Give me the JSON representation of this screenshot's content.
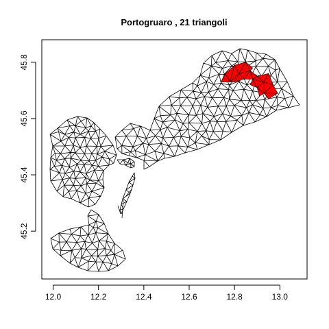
{
  "chart_data": {
    "type": "mesh",
    "title": "Portogruaro ,  21  triangoli",
    "xlabel": "",
    "ylabel": "",
    "xlim": [
      11.95,
      13.12
    ],
    "ylim": [
      45.03,
      45.88
    ],
    "x_ticks": [
      12.0,
      12.2,
      12.4,
      12.6,
      12.8,
      13.0
    ],
    "x_tick_labels": [
      "12.0",
      "12.2",
      "12.4",
      "12.6",
      "12.8",
      "13.0"
    ],
    "y_ticks": [
      45.2,
      45.4,
      45.6,
      45.8
    ],
    "y_tick_labels": [
      "45.2",
      "45.4",
      "45.6",
      "45.8"
    ],
    "highlight_color": "#ff0000",
    "mesh_color": "#000000",
    "highlighted_triangle_count": 21,
    "highlighted_triangles": [
      [
        [
          12.76,
          45.76
        ],
        [
          12.8,
          45.79
        ],
        [
          12.78,
          45.73
        ]
      ],
      [
        [
          12.8,
          45.79
        ],
        [
          12.82,
          45.76
        ],
        [
          12.78,
          45.73
        ]
      ],
      [
        [
          12.8,
          45.79
        ],
        [
          12.85,
          45.8
        ],
        [
          12.82,
          45.76
        ]
      ],
      [
        [
          12.85,
          45.8
        ],
        [
          12.87,
          45.77
        ],
        [
          12.82,
          45.76
        ]
      ],
      [
        [
          12.82,
          45.76
        ],
        [
          12.87,
          45.77
        ],
        [
          12.84,
          45.74
        ]
      ],
      [
        [
          12.82,
          45.76
        ],
        [
          12.84,
          45.74
        ],
        [
          12.8,
          45.73
        ]
      ],
      [
        [
          12.78,
          45.73
        ],
        [
          12.82,
          45.76
        ],
        [
          12.8,
          45.73
        ]
      ],
      [
        [
          12.76,
          45.76
        ],
        [
          12.78,
          45.73
        ],
        [
          12.74,
          45.73
        ]
      ],
      [
        [
          12.85,
          45.8
        ],
        [
          12.88,
          45.78
        ],
        [
          12.87,
          45.77
        ]
      ],
      [
        [
          12.87,
          45.77
        ],
        [
          12.88,
          45.74
        ],
        [
          12.84,
          45.74
        ]
      ],
      [
        [
          12.87,
          45.77
        ],
        [
          12.9,
          45.75
        ],
        [
          12.88,
          45.74
        ]
      ],
      [
        [
          12.9,
          45.75
        ],
        [
          12.93,
          45.73
        ],
        [
          12.88,
          45.74
        ]
      ],
      [
        [
          12.93,
          45.73
        ],
        [
          12.95,
          45.76
        ],
        [
          12.97,
          45.72
        ]
      ],
      [
        [
          12.9,
          45.75
        ],
        [
          12.95,
          45.76
        ],
        [
          12.93,
          45.73
        ]
      ],
      [
        [
          12.93,
          45.73
        ],
        [
          12.97,
          45.72
        ],
        [
          12.93,
          45.69
        ]
      ],
      [
        [
          12.97,
          45.72
        ],
        [
          12.99,
          45.69
        ],
        [
          12.93,
          45.69
        ]
      ],
      [
        [
          12.88,
          45.74
        ],
        [
          12.93,
          45.73
        ],
        [
          12.9,
          45.71
        ]
      ],
      [
        [
          12.9,
          45.71
        ],
        [
          12.93,
          45.73
        ],
        [
          12.93,
          45.69
        ]
      ],
      [
        [
          12.88,
          45.74
        ],
        [
          12.9,
          45.71
        ],
        [
          12.87,
          45.72
        ]
      ],
      [
        [
          12.93,
          45.69
        ],
        [
          12.99,
          45.69
        ],
        [
          12.95,
          45.67
        ]
      ],
      [
        [
          12.9,
          45.71
        ],
        [
          12.93,
          45.69
        ],
        [
          12.91,
          45.68
        ]
      ]
    ]
  }
}
